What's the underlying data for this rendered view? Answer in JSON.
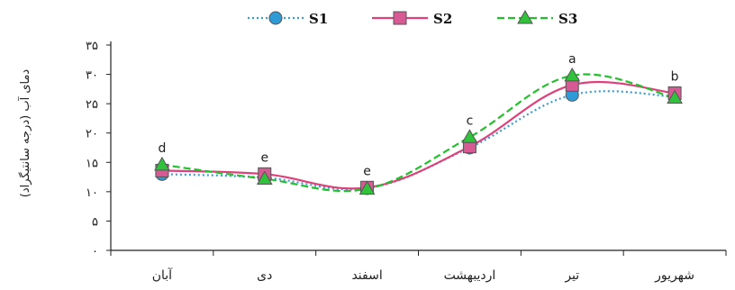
{
  "chart_data": {
    "type": "line",
    "ylabel": "دمای آب (درجه سانتیگراد)",
    "ylim": [
      0,
      35
    ],
    "yticks": [
      {
        "value": 0,
        "label": "۰"
      },
      {
        "value": 5,
        "label": "۵"
      },
      {
        "value": 10,
        "label": "۱۰"
      },
      {
        "value": 15,
        "label": "۱۵"
      },
      {
        "value": 20,
        "label": "۲۰"
      },
      {
        "value": 25,
        "label": "۲۵"
      },
      {
        "value": 30,
        "label": "۳۰"
      },
      {
        "value": 35,
        "label": "۳۵"
      }
    ],
    "categories": [
      "آبان",
      "دی",
      "اسفند",
      "اردیبهشت",
      "تیر",
      "شهریور"
    ],
    "significance_labels": [
      "d",
      "e",
      "e",
      "c",
      "a",
      "b"
    ],
    "legend_position": "top",
    "grid": false,
    "series": [
      {
        "name": "S1",
        "values": [
          13.0,
          12.4,
          10.6,
          17.5,
          26.5,
          26.2
        ],
        "color": "#3a9bd5",
        "dash": "dotted",
        "marker": "circle",
        "marker_fill": "#2e9bd6"
      },
      {
        "name": "S2",
        "values": [
          13.6,
          13.0,
          10.7,
          17.7,
          28.2,
          26.8
        ],
        "color": "#e0407a",
        "dash": "solid",
        "marker": "square",
        "marker_fill": "#d85a95"
      },
      {
        "name": "S3",
        "values": [
          14.6,
          12.2,
          10.5,
          19.3,
          29.8,
          26.0
        ],
        "color": "#22c02c",
        "dash": "dashed",
        "marker": "triangle",
        "marker_fill": "#2fc23a"
      }
    ]
  }
}
